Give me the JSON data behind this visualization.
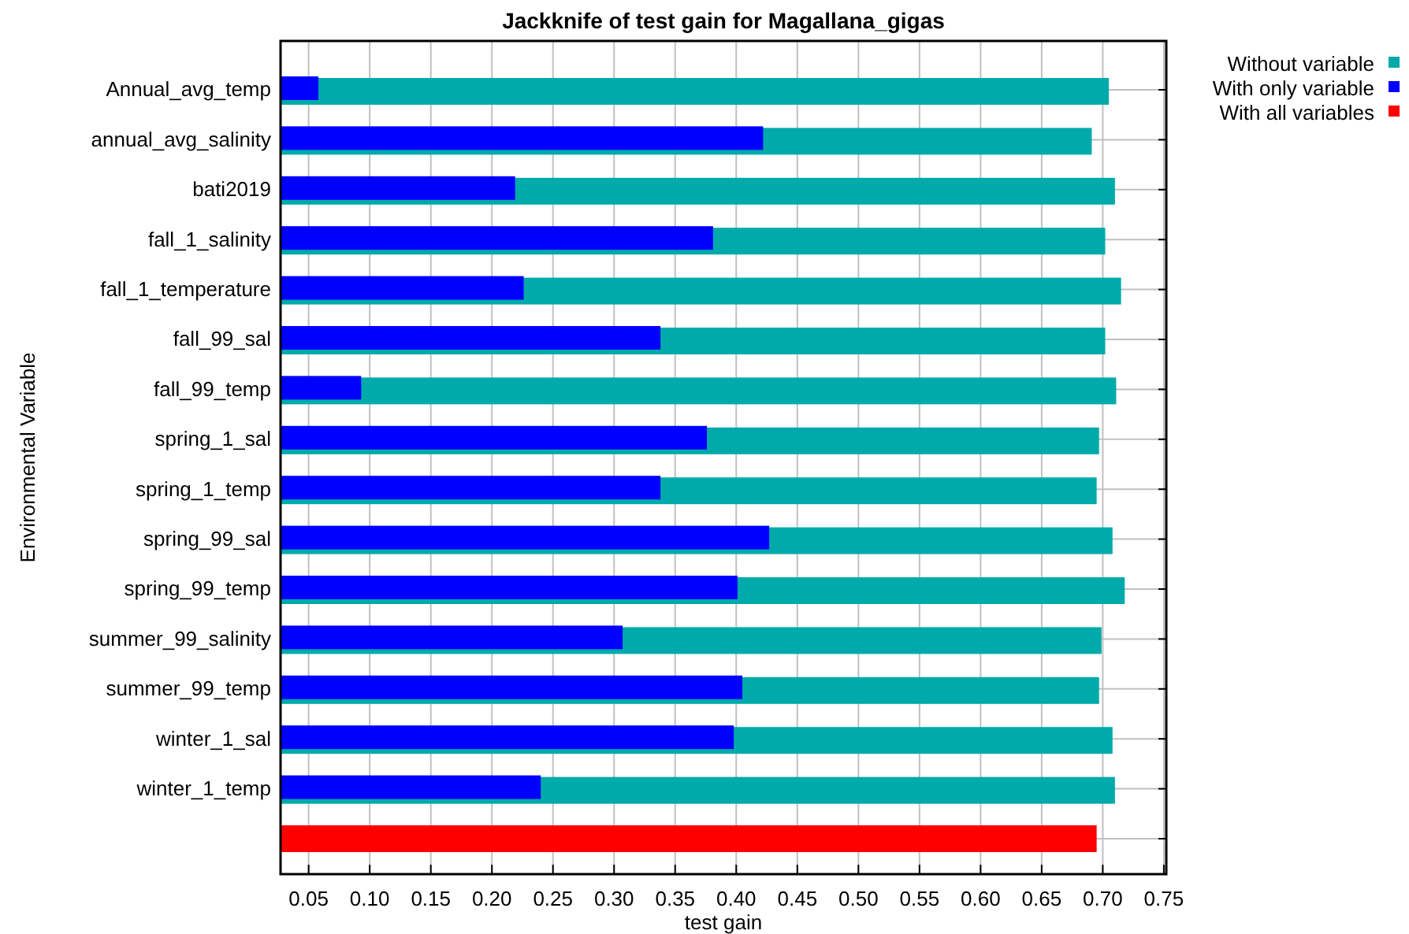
{
  "chart_data": {
    "type": "bar",
    "orientation": "horizontal",
    "title": "Jackknife of test gain for Magallana_gigas",
    "xlabel": "test gain",
    "ylabel": "Environmental Variable",
    "categories": [
      "Annual_avg_temp",
      "annual_avg_salinity",
      "bati2019",
      "fall_1_salinity",
      "fall_1_temperature",
      "fall_99_sal",
      "fall_99_temp",
      "spring_1_sal",
      "spring_1_temp",
      "spring_99_sal",
      "spring_99_temp",
      "summer_99_salinity",
      "summer_99_temp",
      "winter_1_sal",
      "winter_1_temp",
      null
    ],
    "series": [
      {
        "name": "Without variable",
        "color": "#00aaaa",
        "values": [
          0.705,
          0.691,
          0.71,
          0.702,
          0.715,
          0.702,
          0.711,
          0.697,
          0.695,
          0.708,
          0.718,
          0.699,
          0.697,
          0.708,
          0.71,
          null
        ]
      },
      {
        "name": "With only variable",
        "color": "#0000ff",
        "values": [
          0.058,
          0.422,
          0.219,
          0.381,
          0.226,
          0.338,
          0.093,
          0.376,
          0.338,
          0.427,
          0.401,
          0.307,
          0.405,
          0.398,
          0.24,
          null
        ]
      },
      {
        "name": "With all variables",
        "color": "#ff0000",
        "values": [
          null,
          null,
          null,
          null,
          null,
          null,
          null,
          null,
          null,
          null,
          null,
          null,
          null,
          null,
          null,
          0.695
        ]
      }
    ],
    "xlim": [
      0.027,
      0.752
    ],
    "xticks": [
      {
        "value": 0.05,
        "label": "0.05"
      },
      {
        "value": 0.1,
        "label": "0.10"
      },
      {
        "value": 0.15,
        "label": "0.15"
      },
      {
        "value": 0.2,
        "label": "0.20"
      },
      {
        "value": 0.25,
        "label": "0.25"
      },
      {
        "value": 0.3,
        "label": "0.30"
      },
      {
        "value": 0.35,
        "label": "0.35"
      },
      {
        "value": 0.4,
        "label": "0.40"
      },
      {
        "value": 0.45,
        "label": "0.45"
      },
      {
        "value": 0.5,
        "label": "0.50"
      },
      {
        "value": 0.55,
        "label": "0.55"
      },
      {
        "value": 0.6,
        "label": "0.60"
      },
      {
        "value": 0.65,
        "label": "0.65"
      },
      {
        "value": 0.7,
        "label": "0.70"
      },
      {
        "value": 0.75,
        "label": "0.75"
      }
    ],
    "grid": true,
    "legend": "top right"
  }
}
